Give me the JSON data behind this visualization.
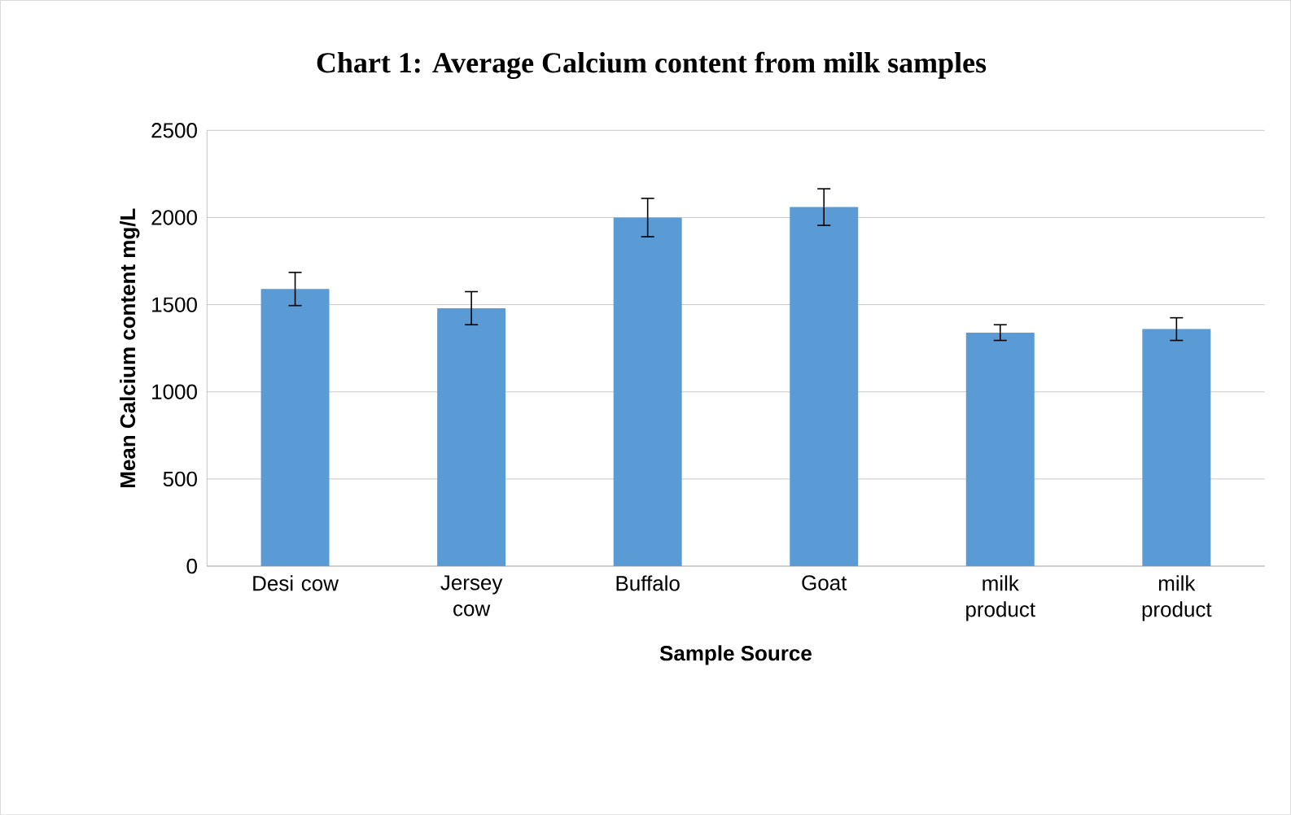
{
  "chart_data": {
    "type": "bar",
    "title": "Chart 1: Average Calcium content from milk samples",
    "xlabel": "Sample Source",
    "ylabel": "Mean Calcium content mg/L",
    "categories": [
      "Desi cow",
      "Jersey cow",
      "Buffalo",
      "Goat",
      "milk product",
      "milk product"
    ],
    "values": [
      1590,
      1480,
      2000,
      2060,
      1340,
      1360
    ],
    "errors": [
      95,
      95,
      110,
      105,
      45,
      65
    ],
    "color": "#5b9bd5",
    "ylim": [
      0,
      2500
    ],
    "yticks": [
      0,
      500,
      1000,
      1500,
      2000,
      2500
    ],
    "grid": "y"
  }
}
